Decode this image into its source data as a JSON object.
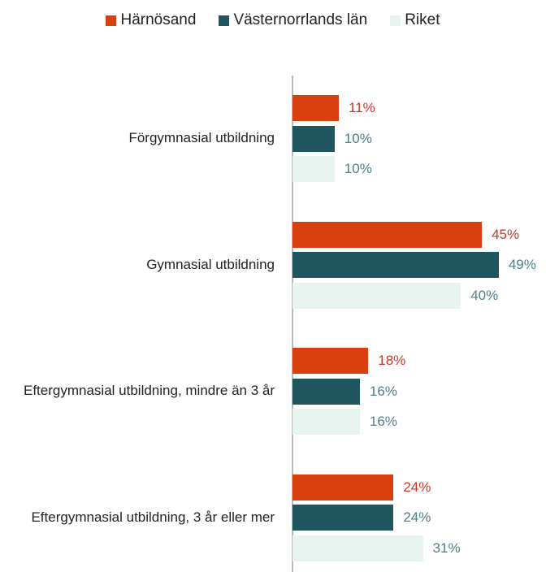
{
  "chart_data": {
    "type": "bar",
    "orientation": "horizontal",
    "categories": [
      "Förgymnasial utbildning",
      "Gymnasial utbildning",
      "Eftergymnasial utbildning, mindre än 3 år",
      "Eftergymnasial utbildning, 3 år eller mer"
    ],
    "series": [
      {
        "name": "Härnösand",
        "color": "#d9400f",
        "label_color": "#c8372b",
        "values": [
          11,
          45,
          18,
          24
        ],
        "value_labels": [
          "11%",
          "45%",
          "18%",
          "24%"
        ]
      },
      {
        "name": "Västernorrlands län",
        "color": "#1f555e",
        "label_color": "#4d7f87",
        "values": [
          10,
          49,
          16,
          24
        ],
        "value_labels": [
          "10%",
          "49%",
          "16%",
          "24%"
        ]
      },
      {
        "name": "Riket",
        "color": "#e8f4f0",
        "label_color": "#4d7f87",
        "values": [
          10,
          40,
          16,
          31
        ],
        "value_labels": [
          "10%",
          "40%",
          "16%",
          "31%"
        ]
      }
    ],
    "legend": "top"
  }
}
